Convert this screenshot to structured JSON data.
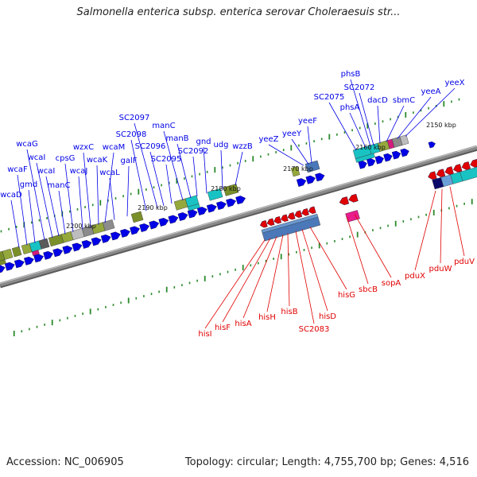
{
  "title": "Salmonella enterica subsp. enterica serovar Choleraesuis str...",
  "footer": {
    "accession": "Accession: NC_006905",
    "summary": "Topology: circular; Length: 4,755,700 bp; Genes: 4,516"
  },
  "kbp_ticks": [
    "2150 kbp",
    "2160 kbp",
    "2170 kbp",
    "2180 kbp",
    "2190 kbp",
    "2200 kbp"
  ],
  "forward_genes": [
    "wcaD",
    "wcaF",
    "gmd",
    "wcaG",
    "wcaI",
    "wcaI",
    "manC",
    "cpsG",
    "wcaJ",
    "wzxC",
    "wcaK",
    "wcaM",
    "wcaL",
    "galF",
    "SC2098",
    "SC2097",
    "SC2096",
    "SC2095",
    "manC",
    "manB",
    "SC2092",
    "gnd",
    "udg",
    "wzzB",
    "yeeZ",
    "yeeY",
    "yeeF",
    "SC2075",
    "phsA",
    "phsB",
    "SC2072",
    "dacD",
    "sbmC",
    "yeeA",
    "yeeX"
  ],
  "reverse_genes": [
    "hisI",
    "hisF",
    "hisA",
    "hisH",
    "hisB",
    "SC2083",
    "hisD",
    "hisG",
    "sbcB",
    "sopA",
    "pduX",
    "pduW",
    "pduV"
  ],
  "colors": {
    "forward": "#0000e6",
    "reverse": "#e00000",
    "backbone": "#8a8a8a",
    "tick": "#2a8a2a"
  }
}
